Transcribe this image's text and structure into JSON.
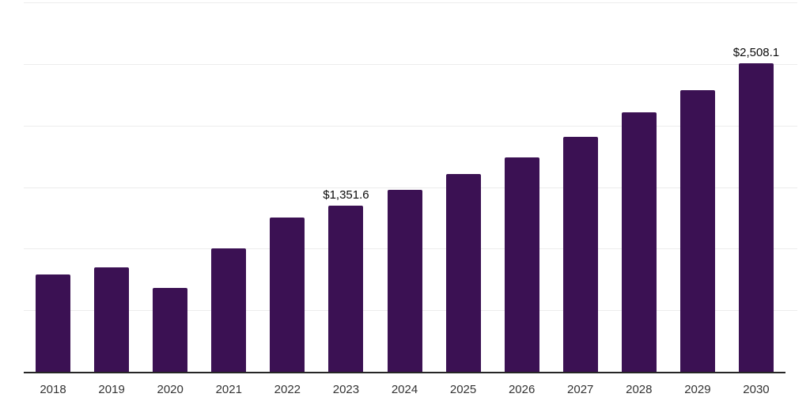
{
  "chart_data": {
    "type": "bar",
    "title": "",
    "xlabel": "",
    "ylabel": "",
    "categories": [
      "2018",
      "2019",
      "2020",
      "2021",
      "2022",
      "2023",
      "2024",
      "2025",
      "2026",
      "2027",
      "2028",
      "2029",
      "2030"
    ],
    "values": [
      790,
      851,
      684,
      1005,
      1251,
      1351.6,
      1476,
      1609,
      1744,
      1911,
      2104,
      2290,
      2508.1
    ],
    "data_labels": {
      "2023": "$1,351.6",
      "2030": "$2,508.1"
    },
    "ylim": [
      0,
      3000
    ],
    "grid_step": 500,
    "grid": true,
    "legend": false,
    "colors": {
      "bar": "#3b1153",
      "axis": "#262626",
      "gridline": "#ececec",
      "tick_label": "#333333",
      "data_label": "#0a0a0a"
    }
  }
}
